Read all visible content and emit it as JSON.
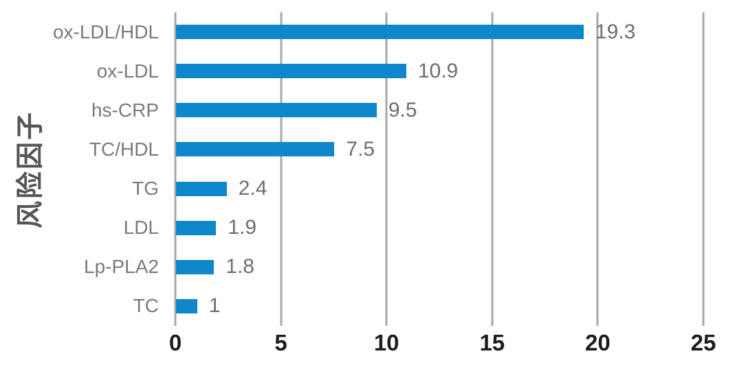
{
  "chart_data": {
    "type": "bar",
    "orientation": "horizontal",
    "title": "",
    "xlabel": "",
    "ylabel": "风险因子",
    "categories": [
      "ox-LDL/HDL",
      "ox-LDL",
      "hs-CRP",
      "TC/HDL",
      "TG",
      "LDL",
      "Lp-PLA2",
      "TC"
    ],
    "values": [
      19.3,
      10.9,
      9.5,
      7.5,
      2.4,
      1.9,
      1.8,
      1
    ],
    "value_labels": [
      "19.3",
      "10.9",
      "9.5",
      "7.5",
      "2.4",
      "1.9",
      "1.8",
      "1"
    ],
    "xlim": [
      0,
      25
    ],
    "xticks": [
      0,
      5,
      10,
      15,
      20,
      25
    ],
    "grid": "vertical-gridlines-on",
    "legend": "none",
    "colors": {
      "bar": "#0e87cc",
      "gridline": "#a8a8a8",
      "category_label": "#7a7a7a",
      "value_label": "#6e6e6e",
      "tick_label": "#1d1d1d",
      "axis_title": "#565656",
      "background": "#ffffff"
    }
  }
}
